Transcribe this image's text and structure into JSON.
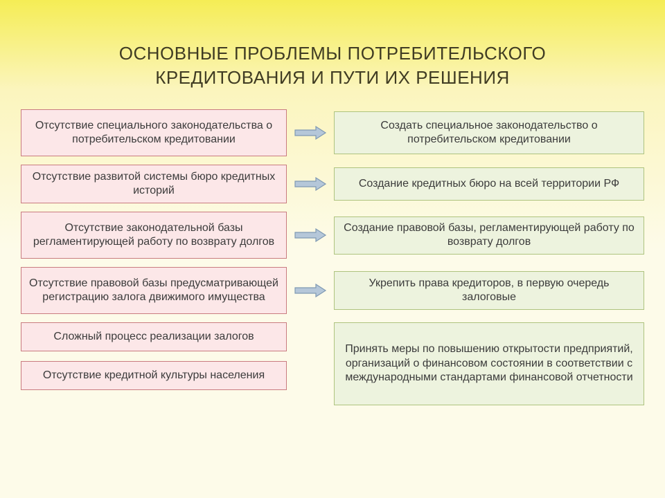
{
  "title": "ОСНОВНЫЕ ПРОБЛЕМЫ ПОТРЕБИТЕЛЬСКОГО КРЕДИТОВАНИЯ И ПУТИ ИХ РЕШЕНИЯ",
  "style": {
    "problem_bg": "#fce7e8",
    "problem_border": "#c97b7f",
    "solution_bg": "#edf3de",
    "solution_border": "#aec37e",
    "arrow_fill": "#b5c7d9",
    "arrow_stroke": "#7f99b3",
    "text_color": "#3b3b3b",
    "title_color": "#403c23",
    "box_fontsize": 16,
    "title_fontsize": 26
  },
  "rows": [
    {
      "problem": "Отсутствие специального законодательства о потребительском кредитовании",
      "solution": "Создать специальное законодательство о потребительском кредитовании",
      "problem_h": 68,
      "solution_h": 62
    },
    {
      "problem": "Отсутствие развитой системы бюро кредитных историй",
      "solution": "Создание кредитных бюро на всей территории РФ",
      "problem_h": 56,
      "solution_h": 48
    },
    {
      "problem": "Отсутствие законодательной базы регламентирующей работу по возврату долгов",
      "solution": "Создание правовой базы, регламентирующей работу по возврату долгов",
      "problem_h": 68,
      "solution_h": 52
    },
    {
      "problem": "Отсутствие правовой базы предусматривающей регистрацию залога движимого имущества",
      "solution": "Укрепить права кредиторов, в первую очередь залоговые",
      "problem_h": 68,
      "solution_h": 56
    }
  ],
  "last": {
    "problems": [
      "Сложный процесс реализации залогов",
      "Отсутствие кредитной культуры населения"
    ],
    "solution": "Принять меры по повышению открытости предприятий, организаций о финансовом состоянии в соответствии с международными стандартами финансовой отчетности",
    "problem_h": 42,
    "solution_h": 120
  }
}
